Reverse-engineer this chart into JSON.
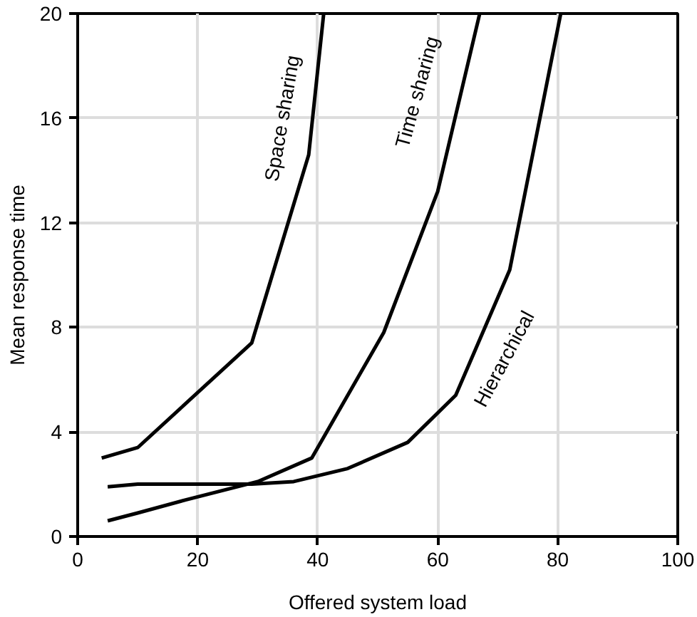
{
  "chart_data": {
    "type": "line",
    "xlabel": "Offered system load",
    "ylabel": "Mean response time",
    "xlim": [
      0,
      100
    ],
    "ylim": [
      0,
      20
    ],
    "xticks": [
      0,
      20,
      40,
      60,
      80,
      100
    ],
    "yticks": [
      0,
      4,
      8,
      12,
      16,
      20
    ],
    "grid": true,
    "legend": false,
    "marker": "none",
    "line_style": "solid",
    "series": [
      {
        "name": "Space sharing",
        "color": "#000000",
        "x": [
          4,
          10,
          29,
          38.5,
          41
        ],
        "values": [
          3.0,
          3.4,
          7.4,
          14.6,
          20
        ]
      },
      {
        "name": "Time sharing",
        "color": "#000000",
        "x": [
          5,
          10,
          18,
          30,
          39,
          51,
          60,
          67
        ],
        "values": [
          0.6,
          0.9,
          1.4,
          2.1,
          3.0,
          7.8,
          13.2,
          20
        ]
      },
      {
        "name": "Hierarchical",
        "color": "#000000",
        "x": [
          5,
          10,
          29,
          36,
          45,
          55,
          63,
          72,
          80.5
        ],
        "values": [
          1.9,
          2.0,
          2.0,
          2.1,
          2.6,
          3.6,
          5.4,
          10.2,
          20
        ]
      }
    ]
  }
}
